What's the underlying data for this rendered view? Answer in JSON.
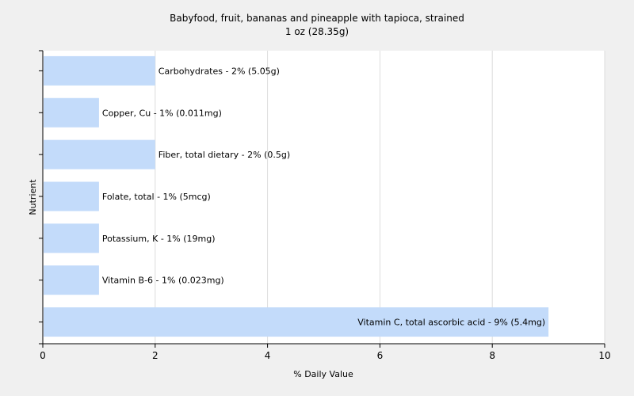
{
  "chart_data": {
    "type": "bar",
    "orientation": "horizontal",
    "title": "Babyfood, fruit, bananas and pineapple with tapioca, strained",
    "subtitle": "1 oz (28.35g)",
    "xlabel": "% Daily Value",
    "ylabel": "Nutrient",
    "xlim": [
      0,
      10
    ],
    "xticks": [
      0,
      2,
      4,
      6,
      8,
      10
    ],
    "grid": true,
    "bar_color": "#c3dbfa",
    "categories": [
      "Carbohydrates",
      "Copper, Cu",
      "Fiber, total dietary",
      "Folate, total",
      "Potassium, K",
      "Vitamin B-6",
      "Vitamin C, total ascorbic acid"
    ],
    "values": [
      2,
      1,
      2,
      1,
      1,
      1,
      9
    ],
    "labels": [
      "Carbohydrates - 2% (5.05g)",
      "Copper, Cu - 1% (0.011mg)",
      "Fiber, total dietary - 2% (0.5g)",
      "Folate, total - 1% (5mcg)",
      "Potassium, K - 1% (19mg)",
      "Vitamin B-6 - 1% (0.023mg)",
      "Vitamin C, total ascorbic acid - 9% (5.4mg)"
    ]
  }
}
